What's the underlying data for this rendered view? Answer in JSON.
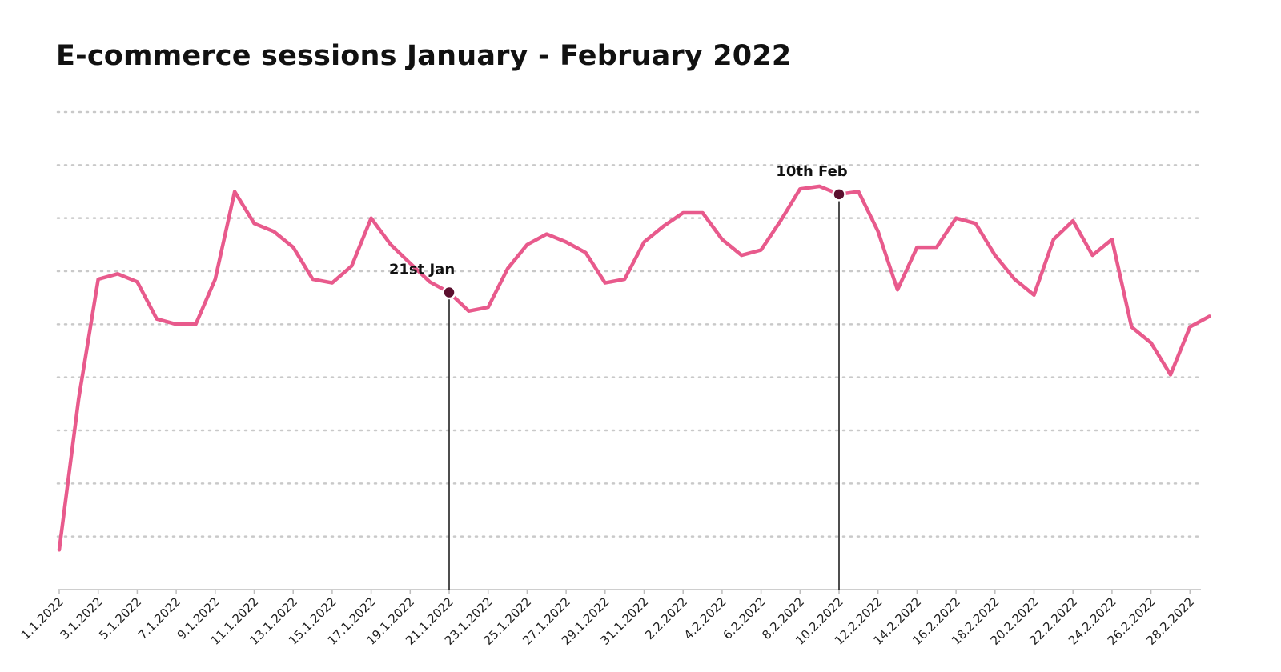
{
  "title": "E-commerce sessions January - February 2022",
  "chart_data": {
    "type": "line",
    "title": "E-commerce sessions January - February 2022",
    "xlabel": "",
    "ylabel": "",
    "ylim": [
      0,
      9
    ],
    "grid": true,
    "y_tick_labels_shown": false,
    "line_color": "#e85a8c",
    "categories": [
      "1.1.2022",
      "3.1.2022",
      "5.1.2022",
      "7.1.2022",
      "9.1.2022",
      "11.1.2022",
      "13.1.2022",
      "15.1.2022",
      "17.1.2022",
      "19.1.2022",
      "21.1.2022",
      "23.1.2022",
      "25.1.2022",
      "27.1.2022",
      "29.1.2022",
      "31.1.2022",
      "2.2.2022",
      "4.2.2022",
      "6.2.2022",
      "8.2.2022",
      "10.2.2022",
      "12.2.2022",
      "14.2.2022",
      "16.2.2022",
      "18.2.2022",
      "20.2.2022",
      "22.2.2022",
      "24.2.2022",
      "26.2.2022",
      "28.2.2022"
    ],
    "x": [
      "1.1.2022",
      "2.1.2022",
      "3.1.2022",
      "4.1.2022",
      "5.1.2022",
      "6.1.2022",
      "7.1.2022",
      "8.1.2022",
      "9.1.2022",
      "10.1.2022",
      "11.1.2022",
      "12.1.2022",
      "13.1.2022",
      "14.1.2022",
      "15.1.2022",
      "16.1.2022",
      "17.1.2022",
      "18.1.2022",
      "19.1.2022",
      "20.1.2022",
      "21.1.2022",
      "22.1.2022",
      "23.1.2022",
      "24.1.2022",
      "25.1.2022",
      "26.1.2022",
      "27.1.2022",
      "28.1.2022",
      "29.1.2022",
      "30.1.2022",
      "31.1.2022",
      "1.2.2022",
      "2.2.2022",
      "3.2.2022",
      "4.2.2022",
      "5.2.2022",
      "6.2.2022",
      "7.2.2022",
      "8.2.2022",
      "9.2.2022",
      "10.2.2022",
      "11.2.2022",
      "12.2.2022",
      "13.2.2022",
      "14.2.2022",
      "15.2.2022",
      "16.2.2022",
      "17.2.2022",
      "18.2.2022",
      "19.2.2022",
      "20.2.2022",
      "21.2.2022",
      "22.2.2022",
      "23.2.2022",
      "24.2.2022",
      "25.2.2022",
      "26.2.2022",
      "27.2.2022",
      "28.2.2022",
      "1.3.2022"
    ],
    "series": [
      {
        "values": [
          0.75,
          3.6,
          5.85,
          5.95,
          5.8,
          5.1,
          5.0,
          5.0,
          5.85,
          7.5,
          6.9,
          6.75,
          6.45,
          5.85,
          5.78,
          6.1,
          7.0,
          6.5,
          6.15,
          5.8,
          5.6,
          5.25,
          5.32,
          6.05,
          6.5,
          6.7,
          6.55,
          6.35,
          5.78,
          5.85,
          6.55,
          6.85,
          7.1,
          7.1,
          6.6,
          6.3,
          6.4,
          6.95,
          7.55,
          7.6,
          7.45,
          7.5,
          6.75,
          5.65,
          6.45,
          6.45,
          7.0,
          6.9,
          6.3,
          5.85,
          5.55,
          6.6,
          6.95,
          6.3,
          6.6,
          4.95,
          4.65,
          4.05,
          4.95,
          5.15
        ]
      }
    ],
    "annotations": [
      {
        "label": "21st Jan",
        "x": "21.1.2022",
        "y": 5.6
      },
      {
        "label": "10th Feb",
        "x": "10.2.2022",
        "y": 7.45
      }
    ]
  }
}
